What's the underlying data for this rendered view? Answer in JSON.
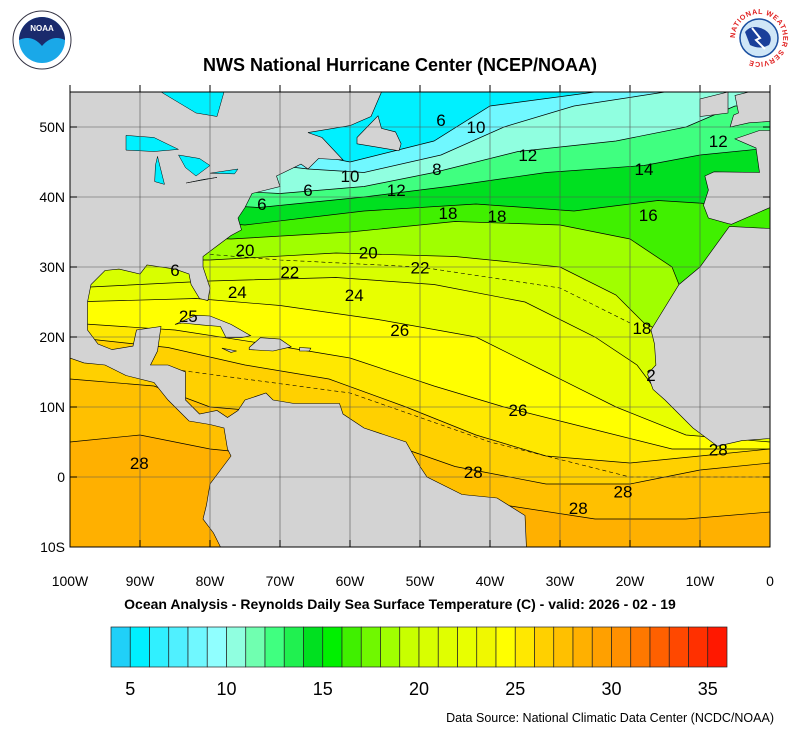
{
  "header": {
    "title": "NWS National Hurricane Center (NCEP/NOAA)",
    "left_logo": "noaa-logo",
    "right_logo": "nws-logo",
    "right_logo_text": "NATIONAL WEATHER SERVICE"
  },
  "map": {
    "lon_range": [
      -100,
      0
    ],
    "lat_range": [
      -10,
      55
    ],
    "lat_labels": [
      {
        "lat": 50,
        "text": "50N"
      },
      {
        "lat": 40,
        "text": "40N"
      },
      {
        "lat": 30,
        "text": "30N"
      },
      {
        "lat": 20,
        "text": "20N"
      },
      {
        "lat": 10,
        "text": "10N"
      },
      {
        "lat": 0,
        "text": "0"
      },
      {
        "lat": -10,
        "text": "10S"
      }
    ],
    "lon_labels": [
      {
        "lon": -100,
        "text": "100W"
      },
      {
        "lon": -90,
        "text": "90W"
      },
      {
        "lon": -80,
        "text": "80W"
      },
      {
        "lon": -70,
        "text": "70W"
      },
      {
        "lon": -60,
        "text": "60W"
      },
      {
        "lon": -50,
        "text": "50W"
      },
      {
        "lon": -40,
        "text": "40W"
      },
      {
        "lon": -30,
        "text": "30W"
      },
      {
        "lon": -20,
        "text": "20W"
      },
      {
        "lon": -10,
        "text": "10W"
      },
      {
        "lon": 0,
        "text": "0"
      }
    ],
    "land_color": "#d3d3d3",
    "grid": true,
    "contour_labels": [
      {
        "text": "6",
        "lon": -47,
        "lat": 51
      },
      {
        "text": "10",
        "lon": -42,
        "lat": 50
      },
      {
        "text": "12",
        "lon": -34.6,
        "lat": 46
      },
      {
        "text": "12",
        "lon": -7.4,
        "lat": 48
      },
      {
        "text": "14",
        "lon": -18,
        "lat": 44
      },
      {
        "text": "8",
        "lon": -47.6,
        "lat": 44
      },
      {
        "text": "10",
        "lon": -60,
        "lat": 43
      },
      {
        "text": "12",
        "lon": -53.4,
        "lat": 41
      },
      {
        "text": "6",
        "lon": -66,
        "lat": 41
      },
      {
        "text": "6",
        "lon": -72.6,
        "lat": 39
      },
      {
        "text": "18",
        "lon": -46,
        "lat": 37.7
      },
      {
        "text": "18",
        "lon": -39,
        "lat": 37.3
      },
      {
        "text": "16",
        "lon": -17.4,
        "lat": 37.4
      },
      {
        "text": "20",
        "lon": -75,
        "lat": 32.4
      },
      {
        "text": "20",
        "lon": -57.4,
        "lat": 32.1
      },
      {
        "text": "22",
        "lon": -68.6,
        "lat": 29.3
      },
      {
        "text": "22",
        "lon": -50,
        "lat": 29.9
      },
      {
        "text": "6",
        "lon": -85,
        "lat": 29.6
      },
      {
        "text": "24",
        "lon": -76.1,
        "lat": 26.4
      },
      {
        "text": "24",
        "lon": -59.4,
        "lat": 26
      },
      {
        "text": "25",
        "lon": -83.1,
        "lat": 23
      },
      {
        "text": "26",
        "lon": -52.9,
        "lat": 21
      },
      {
        "text": "18",
        "lon": -18.3,
        "lat": 21.3
      },
      {
        "text": "2",
        "lon": -17,
        "lat": 14.6
      },
      {
        "text": "26",
        "lon": -36,
        "lat": 9.6
      },
      {
        "text": "28",
        "lon": -90.1,
        "lat": 2
      },
      {
        "text": "28",
        "lon": -42.4,
        "lat": 0.7
      },
      {
        "text": "28",
        "lon": -21,
        "lat": -2.1
      },
      {
        "text": "28",
        "lon": -27.4,
        "lat": -4.4
      },
      {
        "text": "28",
        "lon": -7.4,
        "lat": 3.9
      }
    ]
  },
  "subtitle": "Ocean Analysis - Reynolds Daily Sea Surface Temperature (C) - valid: 2026 - 02 - 19",
  "colorbar": {
    "min": 4,
    "max": 36,
    "step": 1,
    "colors": [
      "#20d0f8",
      "#00f0ff",
      "#30f0ff",
      "#50f0ff",
      "#70f8ff",
      "#90ffff",
      "#90ffe0",
      "#70ffb0",
      "#40ff80",
      "#20f050",
      "#00e020",
      "#00f000",
      "#40f000",
      "#70f800",
      "#a0ff00",
      "#c8ff00",
      "#d8ff00",
      "#e0ff00",
      "#e8ff00",
      "#f0f800",
      "#ffff00",
      "#ffe800",
      "#ffd000",
      "#ffc000",
      "#ffb000",
      "#ffa000",
      "#ff9000",
      "#ff7800",
      "#ff6000",
      "#ff4800",
      "#ff3000",
      "#ff1800"
    ],
    "labels": [
      {
        "value": 5,
        "text": "5"
      },
      {
        "value": 10,
        "text": "10"
      },
      {
        "value": 15,
        "text": "15"
      },
      {
        "value": 20,
        "text": "20"
      },
      {
        "value": 25,
        "text": "25"
      },
      {
        "value": 30,
        "text": "30"
      },
      {
        "value": 35,
        "text": "35"
      }
    ]
  },
  "footer": {
    "source": "Data Source: National Climatic Data Center (NCDC/NOAA)"
  }
}
